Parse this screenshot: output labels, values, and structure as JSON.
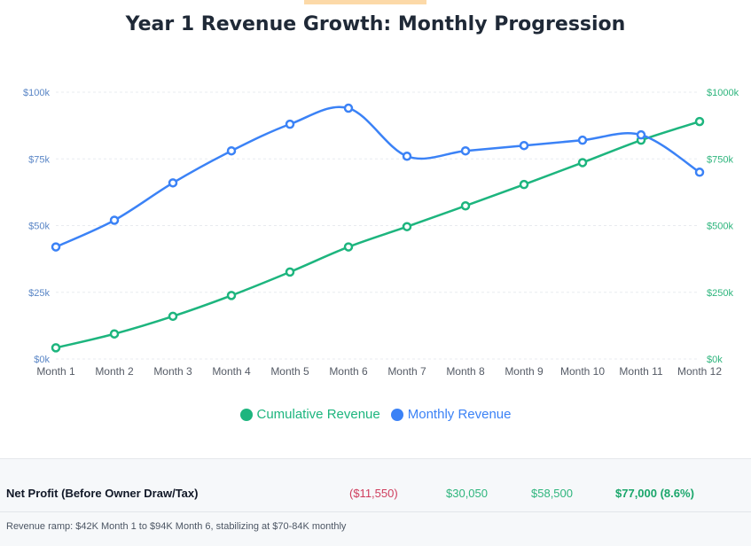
{
  "chart_data": {
    "type": "line",
    "title": "Year 1 Revenue Growth: Monthly Progression",
    "categories": [
      "Month 1",
      "Month 2",
      "Month 3",
      "Month 4",
      "Month 5",
      "Month 6",
      "Month 7",
      "Month 8",
      "Month 9",
      "Month 10",
      "Month 11",
      "Month 12"
    ],
    "y_left": {
      "ylim": [
        0,
        100000
      ],
      "ticks": [
        "$0k",
        "$25k",
        "$50k",
        "$75k",
        "$100k"
      ],
      "color": "#5a86c6"
    },
    "y_right": {
      "ylim": [
        0,
        1000000
      ],
      "ticks": [
        "$0k",
        "$250k",
        "$500k",
        "$750k",
        "$1000k"
      ],
      "color": "#2eb57d"
    },
    "series": [
      {
        "name": "Cumulative Revenue",
        "axis": "right",
        "color": "#1db57e",
        "values": [
          42000,
          94000,
          160000,
          238000,
          326000,
          420000,
          496000,
          574000,
          654000,
          736000,
          820000,
          890000
        ]
      },
      {
        "name": "Monthly Revenue",
        "axis": "left",
        "color": "#3b82f6",
        "values": [
          42000,
          52000,
          66000,
          78000,
          88000,
          94000,
          76000,
          78000,
          80000,
          82000,
          84000,
          70000
        ]
      }
    ],
    "grid": "horizontal-dashed",
    "legend_position": "bottom"
  },
  "summary": {
    "profit_label": "Net Profit (Before Owner Draw/Tax)",
    "profit_values": [
      "($11,550)",
      "$30,050",
      "$58,500",
      "$77,000 (8.6%)"
    ],
    "footnote": "Revenue ramp: $42K Month 1 to $94K Month 6, stabilizing at $70-84K monthly"
  },
  "colors": {
    "accent_top": "#fcd9a8",
    "negative": "#cf3d5d",
    "positive": "#2eb57d"
  }
}
